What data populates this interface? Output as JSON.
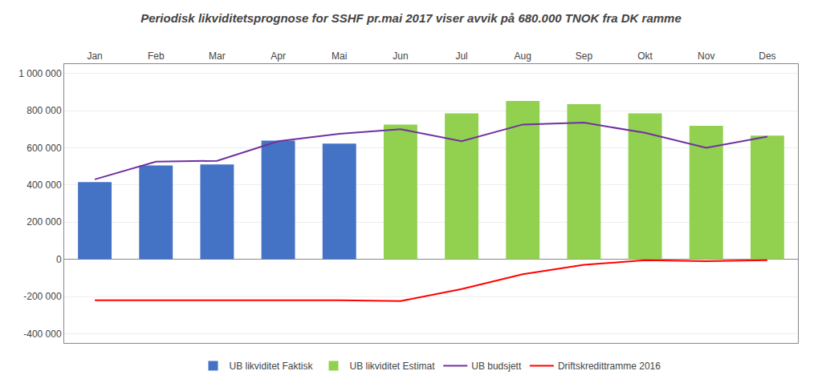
{
  "chart_data": {
    "type": "bar",
    "title": "Periodisk likviditetsprognose for SSHF pr.mai 2017 viser avvik på 680.000 TNOK fra DK ramme",
    "categories": [
      "Jan",
      "Feb",
      "Mar",
      "Apr",
      "Mai",
      "Jun",
      "Jul",
      "Aug",
      "Sep",
      "Okt",
      "Nov",
      "Des"
    ],
    "series": [
      {
        "name": "UB likviditet Faktisk",
        "type": "bar",
        "color": "#4472C4",
        "values": [
          415000,
          505000,
          510000,
          638000,
          622000,
          null,
          null,
          null,
          null,
          null,
          null,
          null
        ]
      },
      {
        "name": "UB likviditet Estimat",
        "type": "bar",
        "color": "#92D050",
        "values": [
          null,
          null,
          null,
          null,
          null,
          725000,
          785000,
          852000,
          835000,
          785000,
          718000,
          665000
        ]
      },
      {
        "name": "UB budsjett",
        "type": "line",
        "color": "#7030A0",
        "values": [
          430000,
          525000,
          530000,
          635000,
          675000,
          700000,
          635000,
          725000,
          735000,
          680000,
          600000,
          660000
        ]
      },
      {
        "name": "Driftskredittramme 2016",
        "type": "line",
        "color": "#FF0000",
        "values": [
          -220000,
          -220000,
          -220000,
          -220000,
          -220000,
          -225000,
          -160000,
          -80000,
          -30000,
          -5000,
          -10000,
          -5000
        ]
      }
    ],
    "ylim": [
      -450000,
      1050000
    ],
    "yticks": [
      {
        "value": -400000,
        "label": "-400 000"
      },
      {
        "value": -200000,
        "label": "-200 000"
      },
      0,
      {
        "value": 200000,
        "label": "200 000"
      },
      {
        "value": 400000,
        "label": "400 000"
      },
      {
        "value": 600000,
        "label": "600 000"
      },
      {
        "value": 800000,
        "label": "800 000"
      },
      {
        "value": 1000000,
        "label": "1 000 000"
      }
    ],
    "grid": true,
    "legend": "bottom"
  }
}
